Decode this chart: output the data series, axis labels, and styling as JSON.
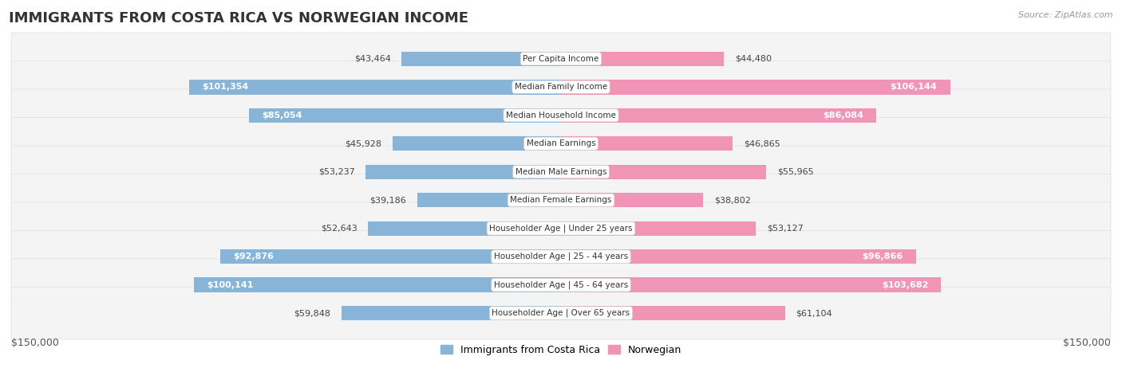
{
  "title": "IMMIGRANTS FROM COSTA RICA VS NORWEGIAN INCOME",
  "source": "Source: ZipAtlas.com",
  "categories": [
    "Per Capita Income",
    "Median Family Income",
    "Median Household Income",
    "Median Earnings",
    "Median Male Earnings",
    "Median Female Earnings",
    "Householder Age | Under 25 years",
    "Householder Age | 25 - 44 years",
    "Householder Age | 45 - 64 years",
    "Householder Age | Over 65 years"
  ],
  "left_values": [
    43464,
    101354,
    85054,
    45928,
    53237,
    39186,
    52643,
    92876,
    100141,
    59848
  ],
  "right_values": [
    44480,
    106144,
    86084,
    46865,
    55965,
    38802,
    53127,
    96866,
    103682,
    61104
  ],
  "left_labels": [
    "$43,464",
    "$101,354",
    "$85,054",
    "$45,928",
    "$53,237",
    "$39,186",
    "$52,643",
    "$92,876",
    "$100,141",
    "$59,848"
  ],
  "right_labels": [
    "$44,480",
    "$106,144",
    "$86,084",
    "$46,865",
    "$55,965",
    "$38,802",
    "$53,127",
    "$96,866",
    "$103,682",
    "$61,104"
  ],
  "left_color": "#88b4d8",
  "right_color": "#f095b5",
  "legend_left": "Immigrants from Costa Rica",
  "legend_right": "Norwegian",
  "max_value": 150000,
  "background_color": "#ffffff",
  "title_fontsize": 13,
  "inside_threshold": 70000,
  "axis_label": "$150,000"
}
